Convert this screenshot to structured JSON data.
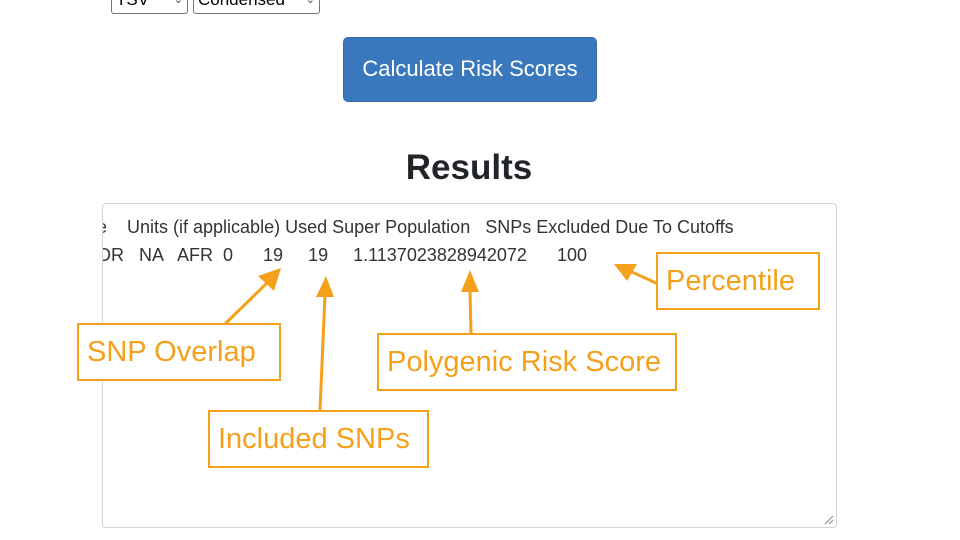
{
  "controls": {
    "format_select": "TSV",
    "view_select": "Condensed",
    "calculate_button": "Calculate Risk Scores"
  },
  "results": {
    "title": "Results",
    "header_line": "e    Units (if applicable) Used Super Population   SNPs Excluded Due To Cutoffs",
    "data_line": "OR   NA   AFR  0      19     19     1.1137023828942072      100"
  },
  "callouts": {
    "percentile": "Percentile",
    "snp_overlap": "SNP Overlap",
    "polygenic_risk_score": "Polygenic Risk Score",
    "included_snps": "Included SNPs"
  },
  "colors": {
    "button": "#3a78be",
    "annotation": "#f5a01a"
  }
}
